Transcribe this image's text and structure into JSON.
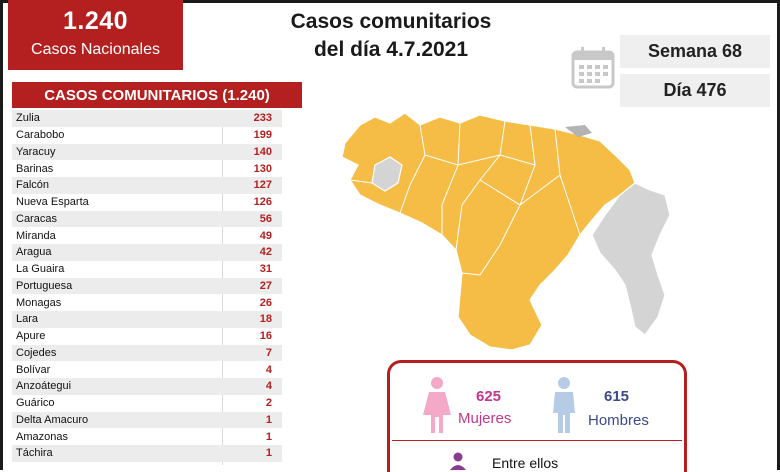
{
  "header": {
    "total": "1.240",
    "total_label": "Casos Nacionales",
    "title_line1": "Casos comunitarios",
    "title_line2": "del día 4.7.2021",
    "week": "Semana 68",
    "day": "Día 476"
  },
  "table": {
    "heading": "CASOS COMUNITARIOS (1.240)",
    "rows": [
      {
        "state": "Zulia",
        "value": "233"
      },
      {
        "state": "Carabobo",
        "value": "199"
      },
      {
        "state": "Yaracuy",
        "value": "140"
      },
      {
        "state": "Barinas",
        "value": "130"
      },
      {
        "state": "Falcón",
        "value": "127"
      },
      {
        "state": "Nueva Esparta",
        "value": "126"
      },
      {
        "state": "Caracas",
        "value": "56"
      },
      {
        "state": "Miranda",
        "value": "49"
      },
      {
        "state": "Aragua",
        "value": "42"
      },
      {
        "state": "La Guaira",
        "value": "31"
      },
      {
        "state": "Portuguesa",
        "value": "27"
      },
      {
        "state": "Monagas",
        "value": "26"
      },
      {
        "state": "Lara",
        "value": "18"
      },
      {
        "state": "Apure",
        "value": "16"
      },
      {
        "state": "Cojedes",
        "value": "7"
      },
      {
        "state": "Bolívar",
        "value": "4"
      },
      {
        "state": "Anzoátegui",
        "value": "4"
      },
      {
        "state": "Guárico",
        "value": "2"
      },
      {
        "state": "Delta Amacuro",
        "value": "1"
      },
      {
        "state": "Amazonas",
        "value": "1"
      },
      {
        "state": "Táchira",
        "value": "1"
      }
    ]
  },
  "gender": {
    "female_count": "625",
    "female_label": "Mujeres",
    "male_count": "615",
    "male_label": "Hombres",
    "footer_text": "Entre ellos"
  },
  "colors": {
    "accent_red": "#b3201f",
    "map_yellow": "#f5bd45",
    "map_gray": "#d4d4d4",
    "female_pink": "#c2378a",
    "male_blue": "#3b4a8c"
  },
  "icons": [
    "calendar-icon",
    "woman-icon",
    "man-icon",
    "person-icon"
  ]
}
